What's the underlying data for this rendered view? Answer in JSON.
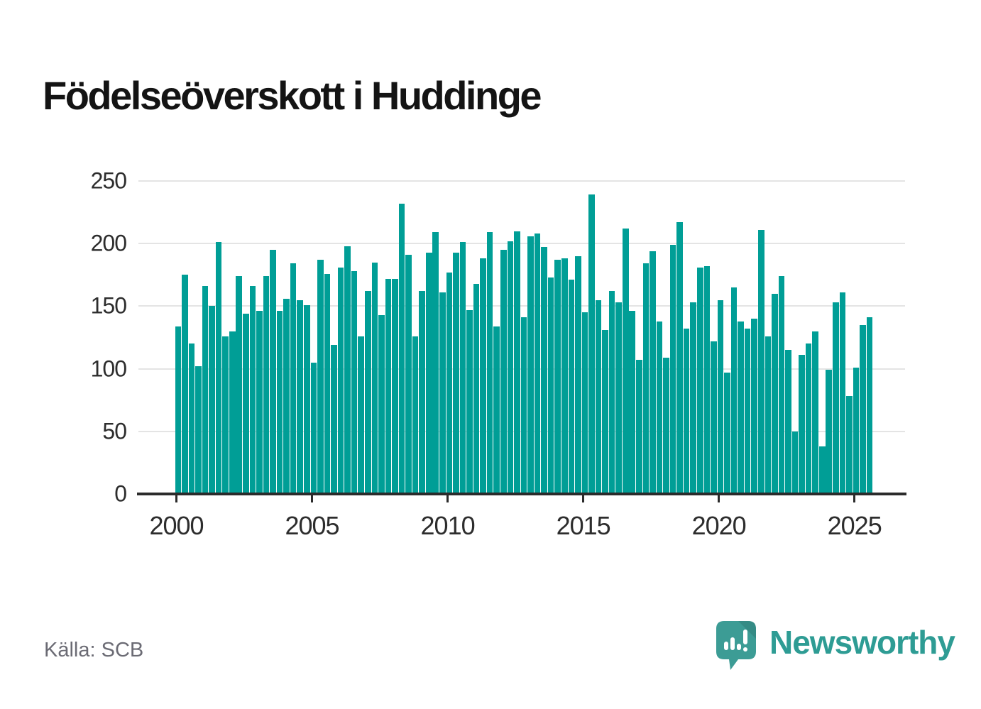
{
  "title": "Födelseöverskott i Huddinge",
  "source": "Källa: SCB",
  "branding": {
    "name": "Newsworthy",
    "logo_icon": "speech-bubble-with-bar-chart-and-exclamation"
  },
  "colors": {
    "bar": "#009E96",
    "brand_teal": "#2E9C94",
    "logo_bubble": "#3C9C95",
    "gridline": "#e4e4e4",
    "axis": "#2b2b2b",
    "source_text": "#6b6b74",
    "title_text": "#141414"
  },
  "chart_data": {
    "type": "bar",
    "title": "Födelseöverskott i Huddinge",
    "period": "quarterly",
    "x_start": "2000 Q1",
    "x_end": "2025 Q3",
    "xlabel": "",
    "ylabel": "",
    "ylim": [
      0,
      250
    ],
    "y_ticks": [
      0,
      50,
      100,
      150,
      200,
      250
    ],
    "x_tick_labels": [
      "2000",
      "2005",
      "2010",
      "2015",
      "2020",
      "2025"
    ],
    "grid": "horizontal",
    "legend": "none",
    "values_by_year": [
      {
        "year": 2000,
        "quarters": [
          134,
          175,
          120,
          102
        ]
      },
      {
        "year": 2001,
        "quarters": [
          166,
          150,
          201,
          126
        ]
      },
      {
        "year": 2002,
        "quarters": [
          130,
          174,
          144,
          166
        ]
      },
      {
        "year": 2003,
        "quarters": [
          146,
          174,
          195,
          146
        ]
      },
      {
        "year": 2004,
        "quarters": [
          156,
          184,
          155,
          151
        ]
      },
      {
        "year": 2005,
        "quarters": [
          105,
          187,
          176,
          119
        ]
      },
      {
        "year": 2006,
        "quarters": [
          181,
          198,
          178,
          126
        ]
      },
      {
        "year": 2007,
        "quarters": [
          162,
          185,
          143,
          172
        ]
      },
      {
        "year": 2008,
        "quarters": [
          172,
          232,
          191,
          126
        ]
      },
      {
        "year": 2009,
        "quarters": [
          162,
          193,
          209,
          161
        ]
      },
      {
        "year": 2010,
        "quarters": [
          177,
          193,
          201,
          147
        ]
      },
      {
        "year": 2011,
        "quarters": [
          168,
          188,
          209,
          134
        ]
      },
      {
        "year": 2012,
        "quarters": [
          195,
          202,
          210,
          141
        ]
      },
      {
        "year": 2013,
        "quarters": [
          206,
          208,
          197,
          173
        ]
      },
      {
        "year": 2014,
        "quarters": [
          187,
          188,
          171,
          190
        ]
      },
      {
        "year": 2015,
        "quarters": [
          145,
          239,
          155,
          131
        ]
      },
      {
        "year": 2016,
        "quarters": [
          162,
          153,
          212,
          146
        ]
      },
      {
        "year": 2017,
        "quarters": [
          107,
          184,
          194,
          138
        ]
      },
      {
        "year": 2018,
        "quarters": [
          109,
          199,
          217,
          132
        ]
      },
      {
        "year": 2019,
        "quarters": [
          153,
          181,
          182,
          122
        ]
      },
      {
        "year": 2020,
        "quarters": [
          155,
          97,
          165,
          138
        ]
      },
      {
        "year": 2021,
        "quarters": [
          132,
          140,
          211,
          126
        ]
      },
      {
        "year": 2022,
        "quarters": [
          160,
          174,
          115,
          50
        ]
      },
      {
        "year": 2023,
        "quarters": [
          111,
          120,
          130,
          38
        ]
      },
      {
        "year": 2024,
        "quarters": [
          99,
          153,
          161,
          78
        ]
      },
      {
        "year": 2025,
        "quarters": [
          101,
          135,
          141
        ]
      }
    ]
  }
}
